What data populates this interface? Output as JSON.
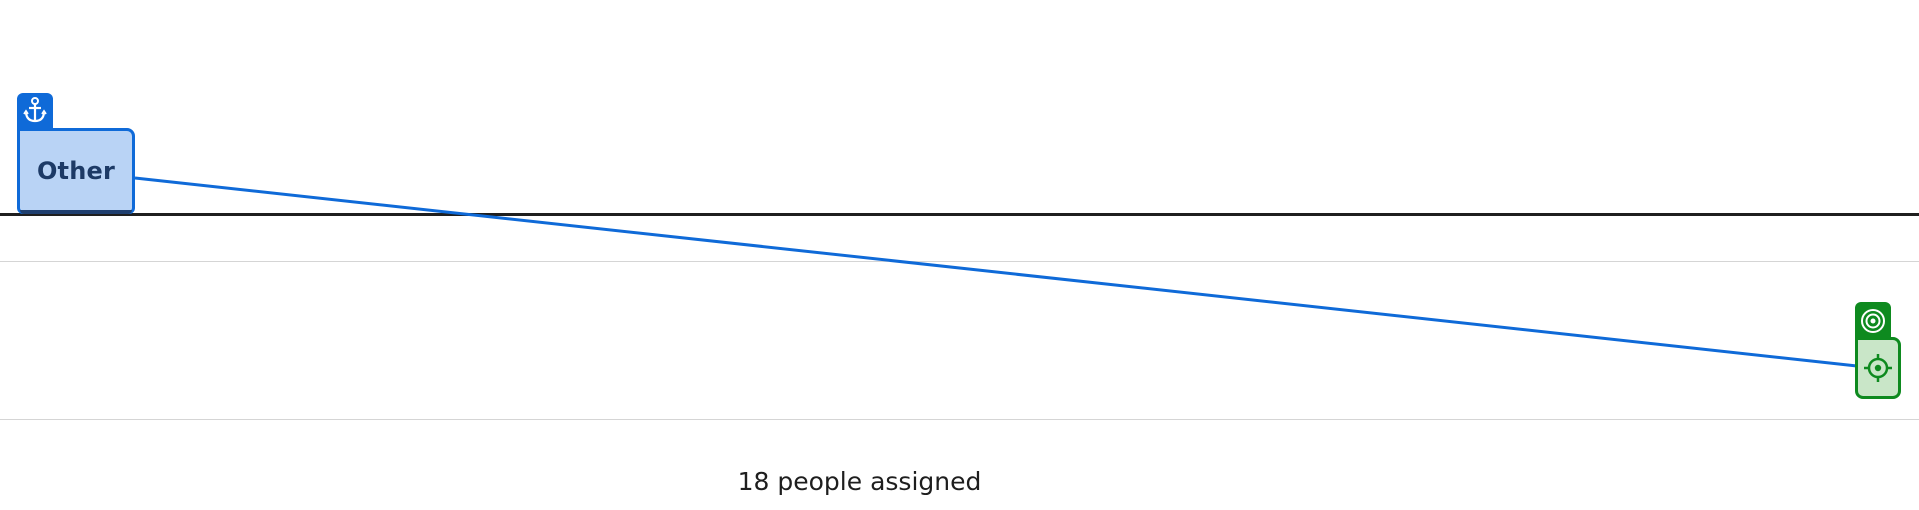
{
  "nodes": {
    "source": {
      "label": "Other",
      "badge_icon": "anchor-icon",
      "color": "#0f6ad8",
      "fill": "#b9d3f5"
    },
    "target": {
      "badge_icon": "target-icon",
      "body_icon": "crosshair-icon",
      "color": "#0e8a1f",
      "fill": "#c9e6c8"
    }
  },
  "connector": {
    "color": "#0f6ad8"
  },
  "footer": {
    "assigned_text": "18 people assigned"
  }
}
